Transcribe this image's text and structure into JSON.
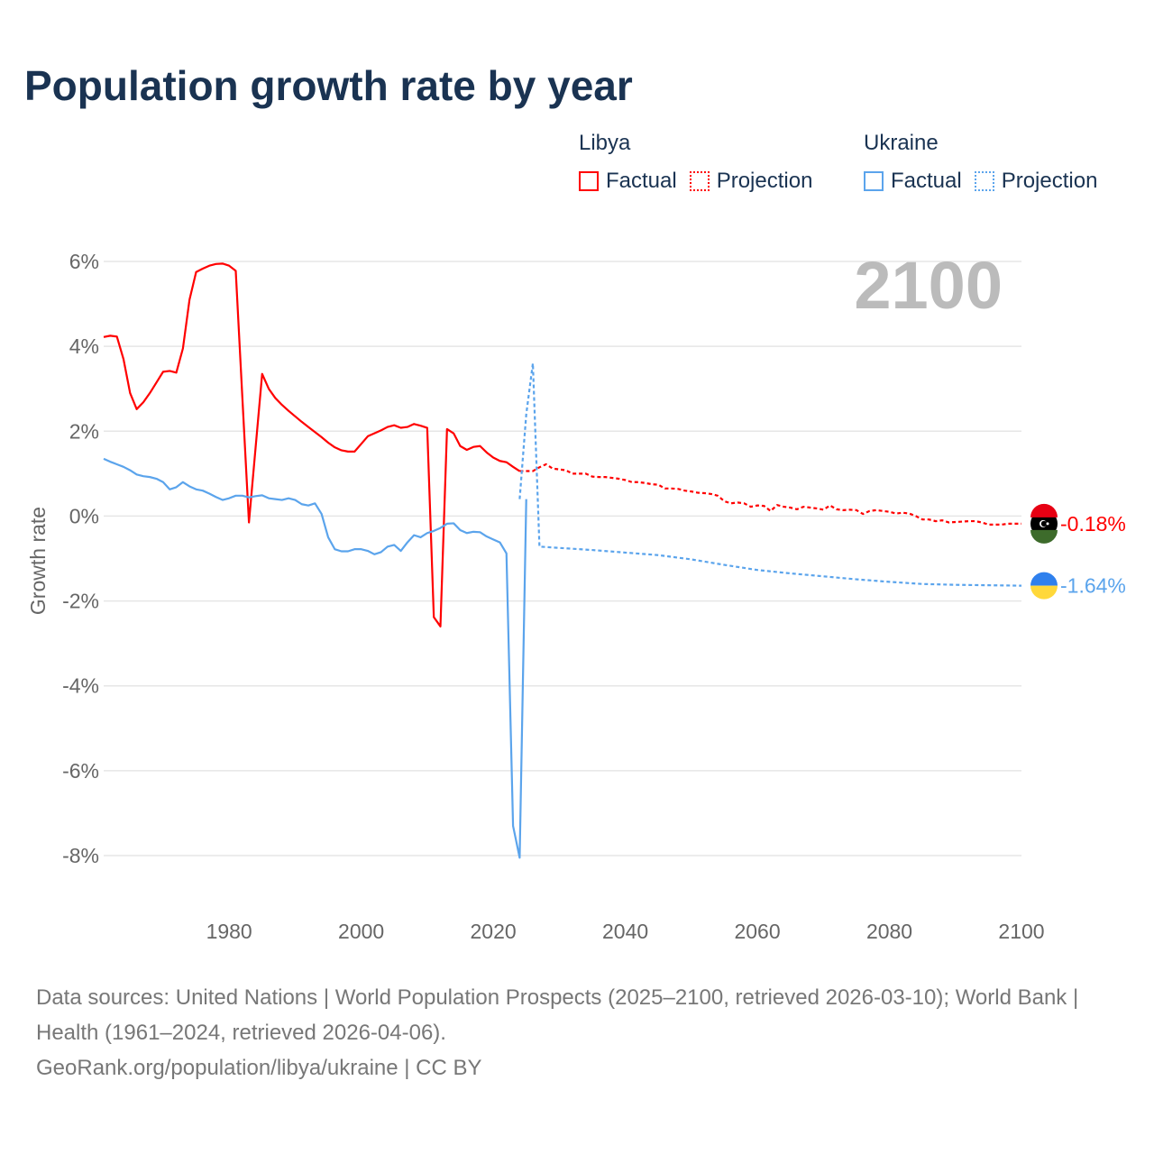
{
  "chart_data": {
    "type": "line",
    "title": "Population growth rate by year",
    "xlabel": "",
    "ylabel": "Growth rate",
    "xlim": [
      1961,
      2100
    ],
    "ylim": [
      -8,
      6
    ],
    "x_ticks": [
      1980,
      2000,
      2020,
      2040,
      2060,
      2080,
      2100
    ],
    "y_ticks": [
      6,
      4,
      2,
      0,
      -2,
      -4,
      -6,
      -8
    ],
    "y_tick_labels": [
      "6%",
      "4%",
      "2%",
      "0%",
      "-2%",
      "-4%",
      "-6%",
      "-8%"
    ],
    "year_overlay": "2100",
    "grid": true,
    "legend_placement": "top-right",
    "series": [
      {
        "name": "Libya",
        "color": "#ff0000",
        "end_label": "-0.18%",
        "factual": {
          "label": "Factual",
          "start": 1961,
          "values": [
            4.22,
            4.25,
            4.23,
            3.7,
            2.9,
            2.52,
            2.68,
            2.9,
            3.15,
            3.4,
            3.42,
            3.38,
            3.95,
            5.1,
            5.75,
            5.83,
            5.9,
            5.94,
            5.95,
            5.9,
            5.78,
            2.8,
            -0.15,
            1.6,
            3.35,
            3.0,
            2.78,
            2.62,
            2.48,
            2.35,
            2.22,
            2.1,
            1.98,
            1.86,
            1.73,
            1.62,
            1.55,
            1.52,
            1.52,
            1.7,
            1.88,
            1.95,
            2.02,
            2.1,
            2.14,
            2.08,
            2.1,
            2.17,
            2.13,
            2.08,
            -2.38,
            -2.6,
            2.05,
            1.95,
            1.65,
            1.56,
            1.63,
            1.65,
            1.5,
            1.38,
            1.3,
            1.27,
            1.16,
            1.06
          ]
        },
        "projection": {
          "label": "Projection",
          "start": 2024,
          "values": [
            1.06,
            1.06,
            1.06,
            1.15,
            1.22,
            1.12,
            1.1,
            1.08,
            1.0,
            1.0,
            1.0,
            0.93,
            0.92,
            0.92,
            0.9,
            0.88,
            0.85,
            0.8,
            0.8,
            0.78,
            0.75,
            0.74,
            0.65,
            0.65,
            0.64,
            0.6,
            0.58,
            0.55,
            0.54,
            0.52,
            0.48,
            0.35,
            0.3,
            0.32,
            0.3,
            0.22,
            0.25,
            0.24,
            0.12,
            0.26,
            0.22,
            0.2,
            0.16,
            0.22,
            0.2,
            0.18,
            0.15,
            0.25,
            0.16,
            0.14,
            0.15,
            0.14,
            0.05,
            0.12,
            0.14,
            0.12,
            0.1,
            0.06,
            0.08,
            0.06,
            0.0,
            -0.08,
            -0.08,
            -0.12,
            -0.1,
            -0.15,
            -0.14,
            -0.13,
            -0.12,
            -0.12,
            -0.15,
            -0.2,
            -0.2,
            -0.2,
            -0.18,
            -0.18,
            -0.18
          ]
        }
      },
      {
        "name": "Ukraine",
        "color": "#5ba4ec",
        "end_label": "-1.64%",
        "factual": {
          "label": "Factual",
          "start": 1961,
          "values": [
            1.35,
            1.28,
            1.22,
            1.16,
            1.08,
            0.98,
            0.94,
            0.92,
            0.88,
            0.8,
            0.63,
            0.68,
            0.8,
            0.7,
            0.63,
            0.6,
            0.53,
            0.45,
            0.38,
            0.42,
            0.48,
            0.48,
            0.44,
            0.47,
            0.49,
            0.42,
            0.4,
            0.38,
            0.42,
            0.38,
            0.28,
            0.25,
            0.3,
            0.05,
            -0.5,
            -0.78,
            -0.83,
            -0.83,
            -0.78,
            -0.78,
            -0.82,
            -0.9,
            -0.85,
            -0.72,
            -0.68,
            -0.82,
            -0.62,
            -0.45,
            -0.5,
            -0.4,
            -0.35,
            -0.28,
            -0.18,
            -0.17,
            -0.33,
            -0.4,
            -0.37,
            -0.38,
            -0.48,
            -0.55,
            -0.62,
            -0.88,
            -7.3,
            -8.05,
            0.4
          ]
        },
        "projection": {
          "label": "Projection",
          "points": [
            [
              2024,
              0.4
            ],
            [
              2025,
              2.4
            ],
            [
              2026,
              3.6
            ],
            [
              2027,
              -0.72
            ],
            [
              2030,
              -0.75
            ],
            [
              2035,
              -0.8
            ],
            [
              2040,
              -0.86
            ],
            [
              2045,
              -0.92
            ],
            [
              2050,
              -1.02
            ],
            [
              2055,
              -1.15
            ],
            [
              2060,
              -1.27
            ],
            [
              2065,
              -1.35
            ],
            [
              2070,
              -1.42
            ],
            [
              2075,
              -1.49
            ],
            [
              2080,
              -1.55
            ],
            [
              2085,
              -1.6
            ],
            [
              2090,
              -1.62
            ],
            [
              2095,
              -1.63
            ],
            [
              2100,
              -1.64
            ]
          ]
        }
      }
    ]
  },
  "legend": {
    "libya": {
      "name": "Libya",
      "factual": "Factual",
      "projection": "Projection"
    },
    "ukraine": {
      "name": "Ukraine",
      "factual": "Factual",
      "projection": "Projection"
    }
  },
  "footer": {
    "sources": "Data sources: United Nations | World Population Prospects (2025–2100, retrieved 2026-03-10); World Bank | Health (1961–2024, retrieved 2026-04-06).",
    "credit": "GeoRank.org/population/libya/ukraine | CC BY"
  }
}
